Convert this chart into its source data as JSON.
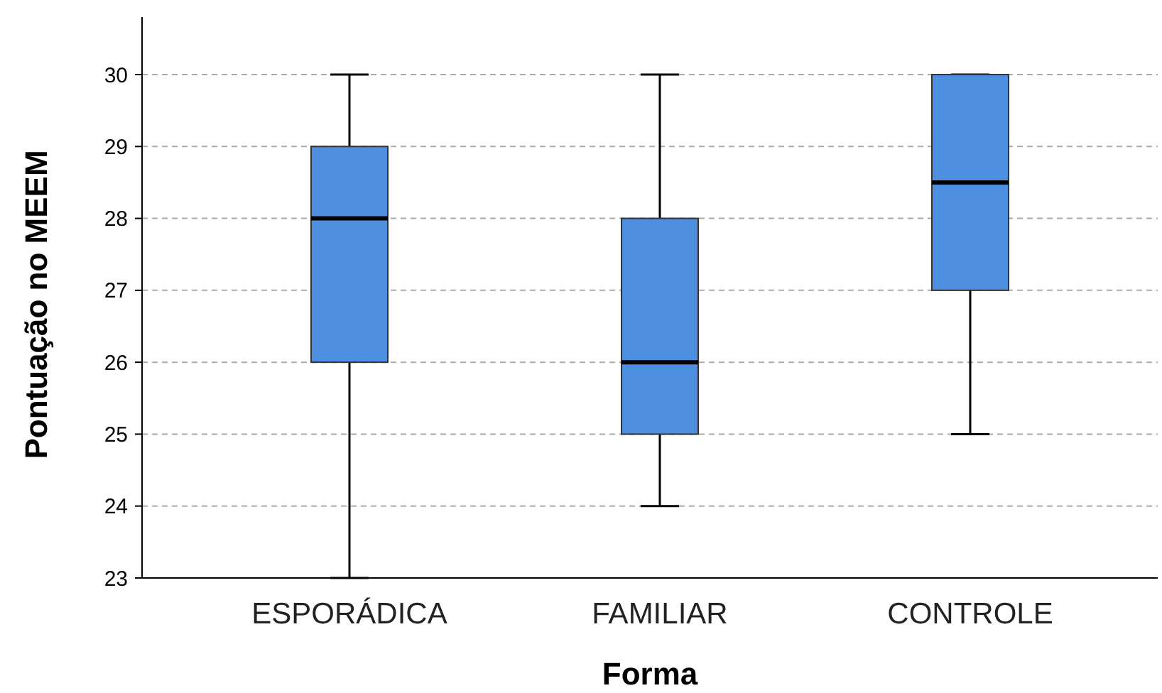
{
  "chart_data": {
    "type": "box",
    "xlabel": "Forma",
    "ylabel": "Pontuação no MEEM",
    "categories": [
      "ESPORÁDICA",
      "FAMILIAR",
      "CONTROLE"
    ],
    "color": "#4f8fe0",
    "boxes": [
      {
        "low": 23,
        "q1": 26,
        "median": 28,
        "q3": 29,
        "high": 30
      },
      {
        "low": 24,
        "q1": 25,
        "median": 26,
        "q3": 28,
        "high": 30
      },
      {
        "low": 25,
        "q1": 27,
        "median": 28.5,
        "q3": 30,
        "high": 30
      }
    ],
    "ylim": [
      23,
      30.8
    ],
    "yticks": [
      23,
      24,
      25,
      26,
      27,
      28,
      29,
      30
    ],
    "grid": "y"
  }
}
